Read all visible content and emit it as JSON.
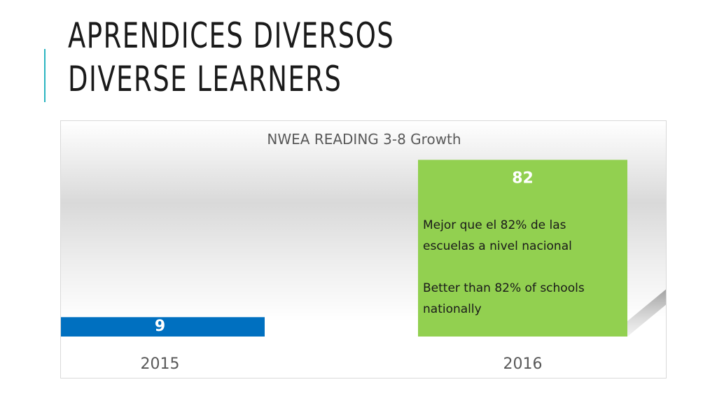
{
  "slide": {
    "title_line1": "APRENDICES DIVERSOS",
    "title_line2": "DIVERSE LEARNERS"
  },
  "chart_data": {
    "type": "bar",
    "title": "NWEA READING 3-8 Growth",
    "categories": [
      "2015",
      "2016"
    ],
    "values": [
      9,
      82
    ],
    "data_labels": [
      "9",
      "82"
    ],
    "ylim": [
      0,
      100
    ],
    "grid": false,
    "legend": "none",
    "colors": [
      "#0070c0",
      "#92d050"
    ]
  },
  "callout": {
    "spanish": "Mejor que el 82% de las escuelas a nivel nacional",
    "english": "Better than 82% of schools nationally"
  }
}
